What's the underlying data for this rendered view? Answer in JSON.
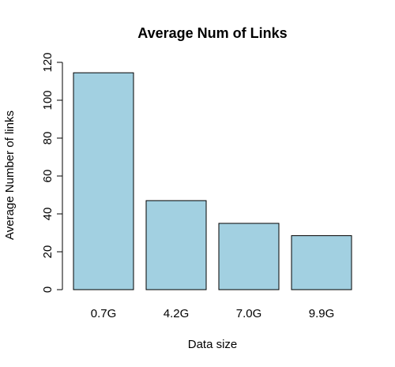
{
  "chart_data": {
    "type": "bar",
    "title": "Average Num of Links",
    "xlabel": "Data size",
    "ylabel": "Average Number of links",
    "categories": [
      "0.7G",
      "4.2G",
      "7.0G",
      "9.9G"
    ],
    "values": [
      114.5,
      47,
      35,
      28.5
    ],
    "ylim": [
      0,
      120
    ],
    "yticks": [
      0,
      20,
      40,
      60,
      80,
      100,
      120
    ],
    "bar_color": "#a2d0e1",
    "grid": false
  }
}
